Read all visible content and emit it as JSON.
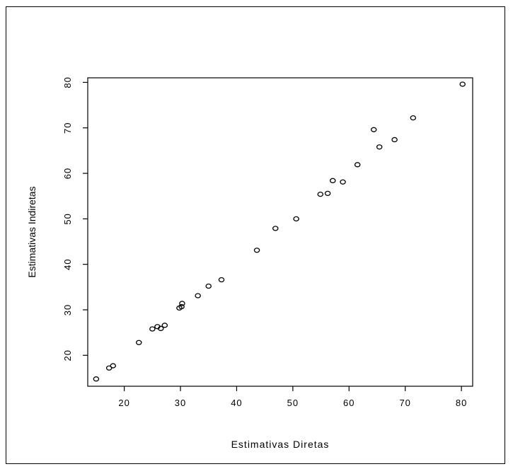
{
  "chart_data": {
    "type": "scatter",
    "title": "",
    "xlabel": "Estimativas Diretas",
    "ylabel": "Estimativas Indiretas",
    "xlim": [
      13.5,
      82
    ],
    "ylim": [
      13.2,
      81
    ],
    "x_ticks": [
      20,
      30,
      40,
      50,
      60,
      70,
      80
    ],
    "y_ticks": [
      20,
      30,
      40,
      50,
      60,
      70,
      80
    ],
    "x_tick_labels": [
      "20",
      "30",
      "40",
      "50",
      "60",
      "70",
      "80"
    ],
    "y_tick_labels": [
      "20",
      "30",
      "40",
      "50",
      "60",
      "70",
      "80"
    ],
    "grid": false,
    "marker": "open-circle",
    "points": [
      {
        "x": 15.0,
        "y": 14.8
      },
      {
        "x": 17.3,
        "y": 17.2
      },
      {
        "x": 18.0,
        "y": 17.7
      },
      {
        "x": 22.6,
        "y": 22.8
      },
      {
        "x": 25.0,
        "y": 25.8
      },
      {
        "x": 25.9,
        "y": 26.3
      },
      {
        "x": 26.5,
        "y": 25.9
      },
      {
        "x": 27.2,
        "y": 26.6
      },
      {
        "x": 29.8,
        "y": 30.4
      },
      {
        "x": 30.2,
        "y": 30.7
      },
      {
        "x": 30.3,
        "y": 31.4
      },
      {
        "x": 33.1,
        "y": 33.1
      },
      {
        "x": 35.0,
        "y": 35.2
      },
      {
        "x": 37.3,
        "y": 36.6
      },
      {
        "x": 43.6,
        "y": 43.1
      },
      {
        "x": 46.9,
        "y": 47.9
      },
      {
        "x": 50.6,
        "y": 50.0
      },
      {
        "x": 54.9,
        "y": 55.4
      },
      {
        "x": 56.2,
        "y": 55.6
      },
      {
        "x": 57.1,
        "y": 58.4
      },
      {
        "x": 58.9,
        "y": 58.1
      },
      {
        "x": 61.5,
        "y": 61.9
      },
      {
        "x": 64.4,
        "y": 69.6
      },
      {
        "x": 65.4,
        "y": 65.8
      },
      {
        "x": 68.1,
        "y": 67.4
      },
      {
        "x": 71.4,
        "y": 72.2
      },
      {
        "x": 80.2,
        "y": 79.6
      }
    ]
  }
}
